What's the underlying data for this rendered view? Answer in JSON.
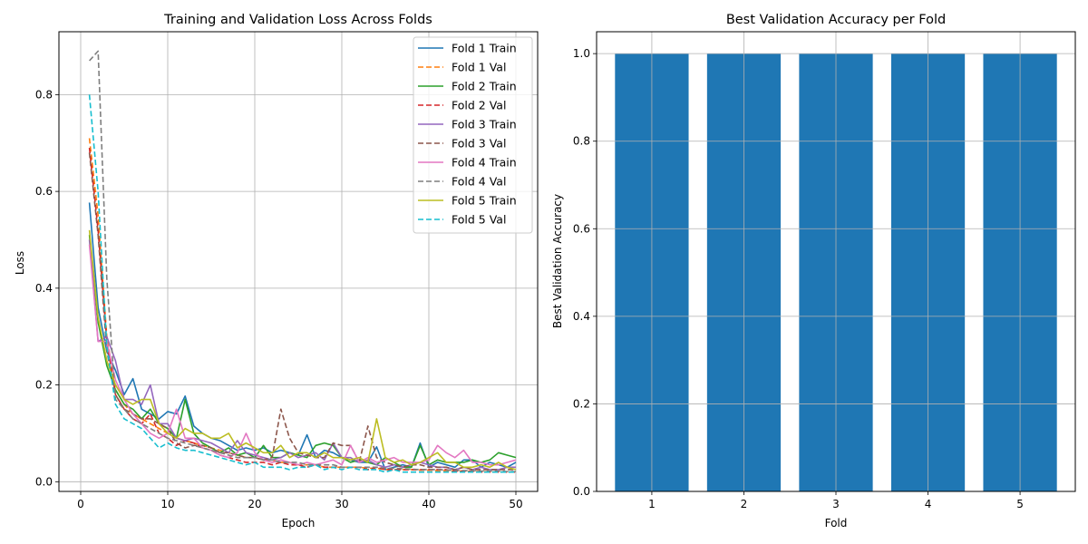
{
  "chart_data": [
    {
      "type": "line",
      "title": "Training and Validation Loss Across Folds",
      "xlabel": "Epoch",
      "ylabel": "Loss",
      "xlim": [
        -2.5,
        52.5
      ],
      "ylim": [
        -0.02,
        0.93
      ],
      "xticks": [
        0,
        10,
        20,
        30,
        40,
        50
      ],
      "yticks": [
        0.0,
        0.2,
        0.4,
        0.6,
        0.8
      ],
      "grid": true,
      "legend_position": "top-right",
      "x": [
        1,
        2,
        3,
        4,
        5,
        6,
        7,
        8,
        9,
        10,
        11,
        12,
        13,
        14,
        15,
        16,
        17,
        18,
        19,
        20,
        21,
        22,
        23,
        24,
        25,
        26,
        27,
        28,
        29,
        30,
        31,
        32,
        33,
        34,
        35,
        36,
        37,
        38,
        39,
        40,
        41,
        42,
        43,
        44,
        45,
        46,
        47,
        48,
        49,
        50
      ],
      "series": [
        {
          "name": "Fold 1 Train",
          "color": "#1f77b4",
          "dash": "solid",
          "values": [
            0.577,
            0.36,
            0.27,
            0.23,
            0.18,
            0.213,
            0.15,
            0.14,
            0.13,
            0.145,
            0.14,
            0.177,
            0.115,
            0.1,
            0.09,
            0.085,
            0.075,
            0.065,
            0.07,
            0.065,
            0.07,
            0.06,
            0.065,
            0.06,
            0.055,
            0.097,
            0.05,
            0.065,
            0.06,
            0.05,
            0.045,
            0.04,
            0.04,
            0.072,
            0.025,
            0.03,
            0.035,
            0.03,
            0.08,
            0.03,
            0.04,
            0.035,
            0.03,
            0.045,
            0.045,
            0.03,
            0.04,
            0.035,
            0.03,
            0.04
          ]
        },
        {
          "name": "Fold 1 Val",
          "color": "#ff7f0e",
          "dash": "dashed",
          "values": [
            0.71,
            0.55,
            0.3,
            0.19,
            0.16,
            0.14,
            0.13,
            0.12,
            0.11,
            0.1,
            0.09,
            0.085,
            0.08,
            0.075,
            0.07,
            0.065,
            0.06,
            0.055,
            0.05,
            0.05,
            0.045,
            0.045,
            0.04,
            0.04,
            0.035,
            0.035,
            0.035,
            0.03,
            0.03,
            0.03,
            0.03,
            0.03,
            0.028,
            0.028,
            0.025,
            0.025,
            0.025,
            0.025,
            0.024,
            0.024,
            0.023,
            0.023,
            0.022,
            0.022,
            0.021,
            0.021,
            0.02,
            0.02,
            0.02,
            0.02
          ]
        },
        {
          "name": "Fold 2 Train",
          "color": "#2ca02c",
          "dash": "solid",
          "values": [
            0.51,
            0.33,
            0.24,
            0.19,
            0.16,
            0.15,
            0.13,
            0.15,
            0.12,
            0.11,
            0.09,
            0.17,
            0.1,
            0.08,
            0.07,
            0.06,
            0.07,
            0.055,
            0.06,
            0.05,
            0.075,
            0.05,
            0.05,
            0.06,
            0.055,
            0.05,
            0.075,
            0.08,
            0.075,
            0.05,
            0.04,
            0.045,
            0.04,
            0.035,
            0.05,
            0.04,
            0.03,
            0.03,
            0.075,
            0.035,
            0.045,
            0.04,
            0.04,
            0.04,
            0.045,
            0.04,
            0.045,
            0.06,
            0.055,
            0.05
          ]
        },
        {
          "name": "Fold 2 Val",
          "color": "#d62728",
          "dash": "dashed",
          "values": [
            0.69,
            0.52,
            0.29,
            0.18,
            0.15,
            0.13,
            0.12,
            0.14,
            0.1,
            0.09,
            0.075,
            0.085,
            0.08,
            0.07,
            0.065,
            0.055,
            0.05,
            0.045,
            0.04,
            0.04,
            0.04,
            0.035,
            0.04,
            0.035,
            0.035,
            0.03,
            0.035,
            0.03,
            0.03,
            0.03,
            0.03,
            0.03,
            0.025,
            0.03,
            0.025,
            0.025,
            0.025,
            0.025,
            0.025,
            0.025,
            0.025,
            0.025,
            0.022,
            0.022,
            0.022,
            0.02,
            0.02,
            0.02,
            0.02,
            0.02
          ]
        },
        {
          "name": "Fold 3 Train",
          "color": "#9467bd",
          "dash": "solid",
          "values": [
            0.5,
            0.29,
            0.3,
            0.25,
            0.17,
            0.17,
            0.16,
            0.2,
            0.12,
            0.12,
            0.09,
            0.085,
            0.09,
            0.085,
            0.08,
            0.07,
            0.06,
            0.085,
            0.06,
            0.055,
            0.05,
            0.045,
            0.05,
            0.06,
            0.05,
            0.055,
            0.06,
            0.045,
            0.08,
            0.05,
            0.05,
            0.04,
            0.045,
            0.035,
            0.03,
            0.035,
            0.03,
            0.035,
            0.04,
            0.035,
            0.03,
            0.03,
            0.025,
            0.03,
            0.025,
            0.03,
            0.025,
            0.025,
            0.03,
            0.03
          ]
        },
        {
          "name": "Fold 3 Val",
          "color": "#8c564b",
          "dash": "dashed",
          "values": [
            0.68,
            0.51,
            0.27,
            0.18,
            0.15,
            0.14,
            0.13,
            0.13,
            0.12,
            0.11,
            0.08,
            0.07,
            0.075,
            0.075,
            0.07,
            0.06,
            0.06,
            0.055,
            0.05,
            0.05,
            0.045,
            0.05,
            0.15,
            0.09,
            0.06,
            0.055,
            0.05,
            0.05,
            0.08,
            0.075,
            0.075,
            0.04,
            0.115,
            0.05,
            0.04,
            0.035,
            0.03,
            0.035,
            0.035,
            0.03,
            0.03,
            0.03,
            0.025,
            0.03,
            0.025,
            0.025,
            0.025,
            0.025,
            0.025,
            0.025
          ]
        },
        {
          "name": "Fold 4 Train",
          "color": "#e377c2",
          "dash": "solid",
          "values": [
            0.49,
            0.29,
            0.29,
            0.21,
            0.17,
            0.14,
            0.12,
            0.1,
            0.09,
            0.1,
            0.15,
            0.09,
            0.09,
            0.07,
            0.065,
            0.055,
            0.05,
            0.06,
            0.1,
            0.06,
            0.045,
            0.04,
            0.045,
            0.04,
            0.035,
            0.04,
            0.035,
            0.04,
            0.045,
            0.035,
            0.075,
            0.04,
            0.05,
            0.04,
            0.045,
            0.05,
            0.04,
            0.04,
            0.04,
            0.045,
            0.075,
            0.06,
            0.05,
            0.065,
            0.04,
            0.04,
            0.035,
            0.035,
            0.04,
            0.045
          ]
        },
        {
          "name": "Fold 4 Val",
          "color": "#7f7f7f",
          "dash": "dashed",
          "values": [
            0.87,
            0.89,
            0.42,
            0.17,
            0.15,
            0.13,
            0.12,
            0.11,
            0.1,
            0.09,
            0.085,
            0.08,
            0.075,
            0.07,
            0.065,
            0.06,
            0.055,
            0.05,
            0.05,
            0.05,
            0.045,
            0.045,
            0.04,
            0.04,
            0.04,
            0.035,
            0.035,
            0.035,
            0.035,
            0.03,
            0.03,
            0.03,
            0.03,
            0.03,
            0.028,
            0.028,
            0.027,
            0.026,
            0.025,
            0.025,
            0.025,
            0.024,
            0.024,
            0.023,
            0.023,
            0.022,
            0.022,
            0.022,
            0.021,
            0.021
          ]
        },
        {
          "name": "Fold 5 Train",
          "color": "#bcbd22",
          "dash": "solid",
          "values": [
            0.52,
            0.34,
            0.25,
            0.2,
            0.17,
            0.16,
            0.17,
            0.17,
            0.12,
            0.1,
            0.09,
            0.11,
            0.1,
            0.1,
            0.09,
            0.09,
            0.1,
            0.07,
            0.08,
            0.07,
            0.06,
            0.06,
            0.075,
            0.05,
            0.06,
            0.06,
            0.05,
            0.06,
            0.05,
            0.05,
            0.045,
            0.05,
            0.04,
            0.13,
            0.05,
            0.04,
            0.045,
            0.035,
            0.04,
            0.05,
            0.06,
            0.04,
            0.04,
            0.03,
            0.03,
            0.035,
            0.03,
            0.04,
            0.03,
            0.025
          ]
        },
        {
          "name": "Fold 5 Val",
          "color": "#17becf",
          "dash": "dashed",
          "values": [
            0.8,
            0.6,
            0.28,
            0.16,
            0.13,
            0.12,
            0.11,
            0.09,
            0.07,
            0.08,
            0.07,
            0.065,
            0.065,
            0.06,
            0.055,
            0.05,
            0.045,
            0.04,
            0.035,
            0.04,
            0.03,
            0.03,
            0.03,
            0.025,
            0.03,
            0.03,
            0.035,
            0.025,
            0.03,
            0.025,
            0.03,
            0.025,
            0.025,
            0.025,
            0.02,
            0.025,
            0.02,
            0.02,
            0.02,
            0.02,
            0.02,
            0.02,
            0.02,
            0.02,
            0.02,
            0.02,
            0.02,
            0.02,
            0.02,
            0.02
          ]
        }
      ]
    },
    {
      "type": "bar",
      "title": "Best Validation Accuracy per Fold",
      "xlabel": "Fold",
      "ylabel": "Best Validation Accuracy",
      "categories": [
        "1",
        "2",
        "3",
        "4",
        "5"
      ],
      "values": [
        1.0,
        1.0,
        1.0,
        1.0,
        1.0
      ],
      "ylim": [
        0,
        1.05
      ],
      "yticks": [
        0.0,
        0.2,
        0.4,
        0.6,
        0.8,
        1.0
      ],
      "bar_color": "#1f77b4",
      "grid": true
    }
  ]
}
